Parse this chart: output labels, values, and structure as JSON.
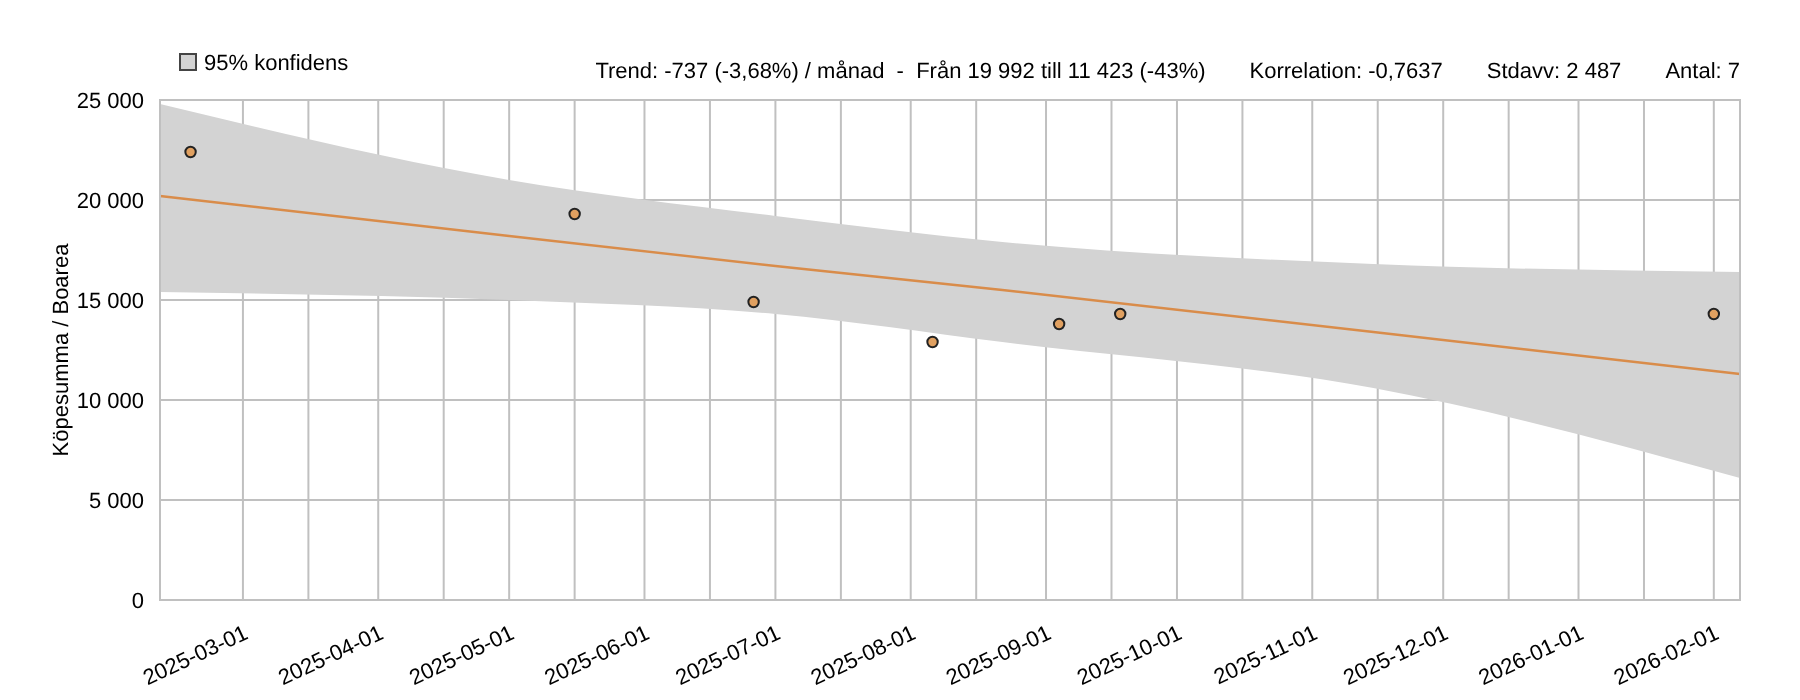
{
  "chart_data": {
    "type": "scatter",
    "ylabel": "Köpesumma / Boarea",
    "annotations": [
      "Trend: -737 (-3,68%) / månad  -  Från 19 992 till 11 423 (-43%)",
      "Korrelation: -0,7637",
      "Stdavv: 2 487",
      "Antal: 7"
    ],
    "x": [
      "2025-02-17",
      "2025-05-16",
      "2025-06-26",
      "2025-08-06",
      "2025-09-04",
      "2025-09-18",
      "2026-02-01"
    ],
    "series": [
      {
        "type": "line",
        "name": "95% konfidens",
        "color": "#d98c4a",
        "x": [
          "2025-02-10",
          "2025-05-01",
          "2025-07-01",
          "2025-08-22",
          "2025-11-15",
          "2026-02-07"
        ],
        "values": [
          20200,
          18200,
          16700,
          15500,
          13400,
          11300
        ],
        "lower": [
          15400,
          15000,
          14300,
          12900,
          10600,
          6100
        ],
        "upper": [
          24800,
          21000,
          19200,
          17900,
          16800,
          16400
        ]
      },
      {
        "color": "#e0a060",
        "marker": "circle",
        "values": [
          22400,
          19300,
          14900,
          12900,
          13800,
          14300,
          14300
        ]
      }
    ],
    "xlim": [
      "2025-02-10",
      "2026-02-07"
    ],
    "xticks": [
      "2025-03-01",
      {
        "value": "2025-03-16",
        "label": null
      },
      "2025-04-01",
      {
        "value": "2025-04-16",
        "label": null
      },
      "2025-05-01",
      {
        "value": "2025-05-16",
        "label": null
      },
      "2025-06-01",
      {
        "value": "2025-06-16",
        "label": null
      },
      "2025-07-01",
      {
        "value": "2025-07-16",
        "label": null
      },
      "2025-08-01",
      {
        "value": "2025-08-16",
        "label": null
      },
      "2025-09-01",
      {
        "value": "2025-09-16",
        "label": null
      },
      "2025-10-01",
      {
        "value": "2025-10-16",
        "label": null
      },
      "2025-11-01",
      {
        "value": "2025-11-16",
        "label": null
      },
      "2025-12-01",
      {
        "value": "2025-12-16",
        "label": null
      },
      "2026-01-01",
      {
        "value": "2026-01-16",
        "label": null
      },
      "2026-02-01"
    ],
    "ylim": [
      0,
      25000
    ],
    "yticks": [
      0,
      {
        "value": 5000,
        "label": "5 000"
      },
      {
        "value": 10000,
        "label": "10 000"
      },
      {
        "value": 15000,
        "label": "15 000"
      },
      {
        "value": 20000,
        "label": "20 000"
      },
      {
        "value": 25000,
        "label": "25 000"
      }
    ],
    "grid": true,
    "legend": "top left"
  }
}
